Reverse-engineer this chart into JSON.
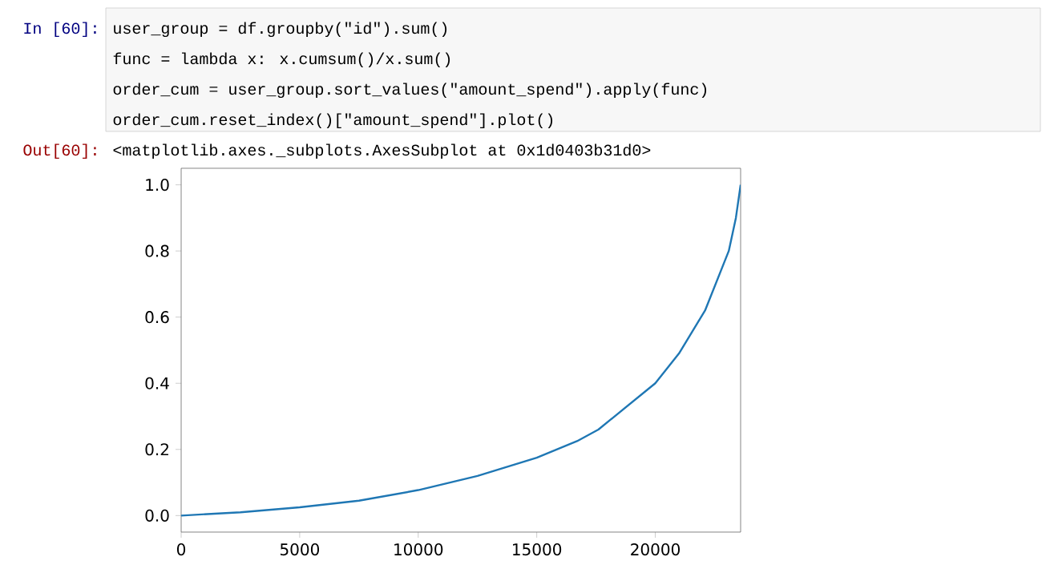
{
  "chart_data": {
    "type": "line",
    "annotations": [
      "In [60]:",
      "user_group = df.groupby(\"id\").sum()",
      "func = lambda x: x.cumsum()/x.sum()",
      "order_cum = user_group.sort_values(\"amount_spend\").apply(func)",
      "order_cum.reset_index()[\"amount_spend\"].plot()",
      "Out[60]:",
      "<matplotlib.axes._subplots.AxesSubplot at 0x1d0403b31d0>"
    ],
    "x": [
      0,
      2500,
      5000,
      7500,
      10000,
      12500,
      15000,
      16700,
      17600,
      20000,
      21000,
      22100,
      23100,
      23400,
      23600
    ],
    "series": [
      {
        "color": "#1f77b4",
        "values": [
          0,
          0.01,
          0.025,
          0.045,
          0.077,
          0.12,
          0.175,
          0.225,
          0.26,
          0.4,
          0.49,
          0.62,
          0.8,
          0.9,
          1.0
        ]
      }
    ],
    "xlim": [
      0,
      23600
    ],
    "ylim": [
      -0.05,
      1.05
    ],
    "xticks": [
      0,
      5000,
      10000,
      15000,
      20000
    ],
    "yticks": [
      {
        "value": 0,
        "label": "0.0"
      },
      {
        "value": 0.2,
        "label": "0.2"
      },
      {
        "value": 0.4,
        "label": "0.4"
      },
      {
        "value": 0.6,
        "label": "0.6"
      },
      {
        "value": 0.8,
        "label": "0.8"
      },
      {
        "value": 1,
        "label": "1.0"
      }
    ],
    "grid": false,
    "marker": "none",
    "line_style": "solid"
  }
}
